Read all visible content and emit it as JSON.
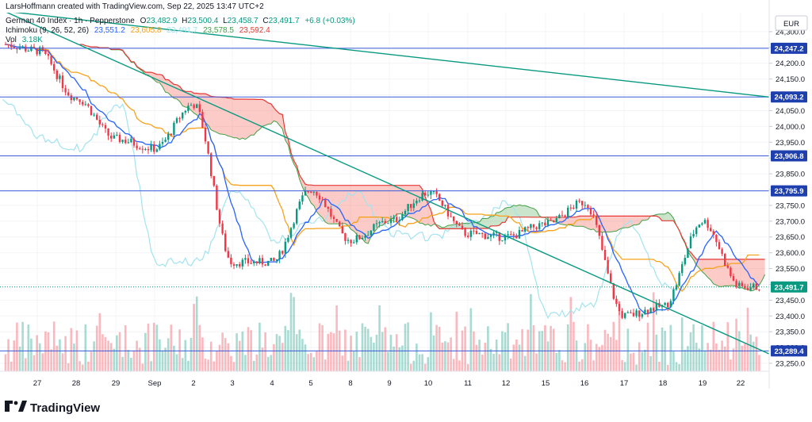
{
  "header": {
    "author_line": "LarsHoffmann created with TradingView.com, Sep 22, 2025 13:47 UTC+2",
    "symbol_line": "German 40 Index · 1h · Pepperstone",
    "ohlc": [
      {
        "label": "O",
        "value": "23,482.9"
      },
      {
        "label": "H",
        "value": "23,500.4"
      },
      {
        "label": "L",
        "value": "23,458.7"
      },
      {
        "label": "C",
        "value": "23,491.7"
      }
    ],
    "change": "+6.8 (+0.03%)",
    "ichimoku_label": "Ichimoku (9, 26, 52, 26)",
    "ichimoku_values": [
      {
        "value": "23,551.2",
        "color": "#2962ff"
      },
      {
        "value": "23,605.8",
        "color": "#f7a21b"
      },
      {
        "value": "23,491.7",
        "color": "#a3e3ee"
      },
      {
        "value": "23,578.5",
        "color": "#43a047"
      },
      {
        "value": "23,592.4",
        "color": "#e53935"
      }
    ],
    "vol_label": "Vol",
    "vol_value": "3.18K"
  },
  "currency": "EUR",
  "brand": "TradingView",
  "chart_data": {
    "type": "candlestick",
    "title": "German 40 Index · 1h · Pepperstone",
    "y_axis": {
      "ylim": [
        23225,
        24360
      ],
      "ticks": [
        "24,300.0",
        "24,250.0",
        "24,200.0",
        "24,150.0",
        "24,100.0",
        "24,050.0",
        "24,000.0",
        "23,950.0",
        "23,900.0",
        "23,850.0",
        "23,800.0",
        "23,750.0",
        "23,700.0",
        "23,650.0",
        "23,600.0",
        "23,550.0",
        "23,500.0",
        "23,450.0",
        "23,400.0",
        "23,350.0",
        "23,300.0",
        "23,250.0"
      ]
    },
    "x_axis": {
      "ticks": [
        "27",
        "28",
        "29",
        "Sep",
        "2",
        "3",
        "4",
        "5",
        "8",
        "9",
        "10",
        "11",
        "12",
        "15",
        "16",
        "17",
        "18",
        "19",
        "22"
      ]
    },
    "horizontal_levels": [
      {
        "label": "24,247.2",
        "value": 24247.2
      },
      {
        "label": "24,093.2",
        "value": 24093.2
      },
      {
        "label": "23,906.8",
        "value": 23906.8
      },
      {
        "label": "23,795.9",
        "value": 23795.9
      },
      {
        "label": "23,289.4",
        "value": 23289.4
      }
    ],
    "last_price": {
      "label": "23,491.7",
      "value": 23491.7
    },
    "trend_lines": [
      {
        "from": {
          "x": "27",
          "y": 24335
        },
        "to": {
          "x": "22",
          "y": 24093
        }
      },
      {
        "from": {
          "x": "27",
          "y": 24335
        },
        "to": {
          "x": "22",
          "y": 23280
        }
      }
    ],
    "price_path": [
      {
        "x": "27",
        "y": 24240
      },
      {
        "x": "28",
        "y": 24090
      },
      {
        "x": "29",
        "y": 23960
      },
      {
        "x": "Sep",
        "y": 23930
      },
      {
        "x": "2",
        "y": 24070
      },
      {
        "x": "3",
        "y": 23570
      },
      {
        "x": "4",
        "y": 23570
      },
      {
        "x": "5",
        "y": 23800
      },
      {
        "x": "8",
        "y": 23640
      },
      {
        "x": "9",
        "y": 23700
      },
      {
        "x": "10",
        "y": 23790
      },
      {
        "x": "11",
        "y": 23660
      },
      {
        "x": "12",
        "y": 23650
      },
      {
        "x": "15",
        "y": 23690
      },
      {
        "x": "16",
        "y": 23760
      },
      {
        "x": "17",
        "y": 23400
      },
      {
        "x": "18",
        "y": 23430
      },
      {
        "x": "19",
        "y": 23700
      },
      {
        "x": "22",
        "y": 23491.7
      }
    ],
    "volume": {
      "last": "3.18K"
    }
  }
}
